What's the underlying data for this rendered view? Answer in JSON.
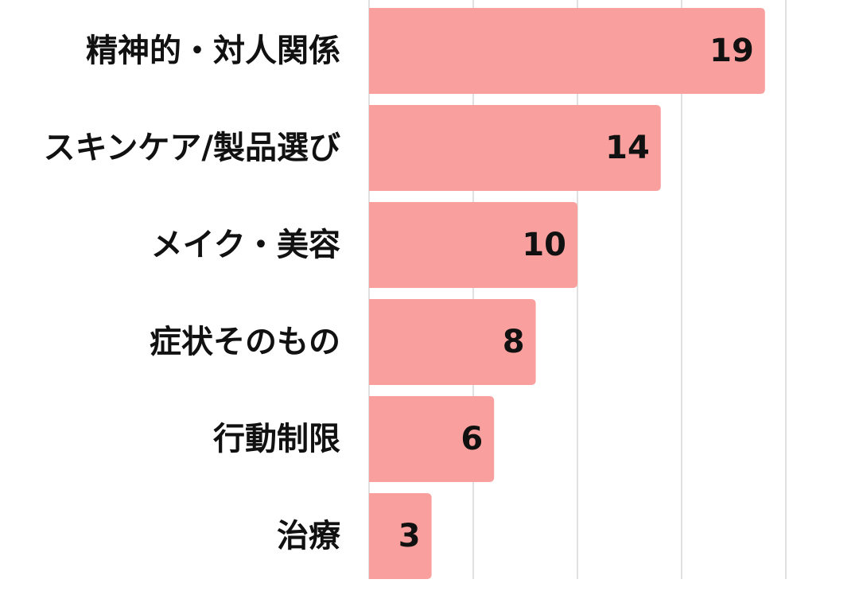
{
  "chart_data": {
    "type": "bar",
    "orientation": "horizontal",
    "categories": [
      "精神的・対人関係",
      "スキンケア/製品選び",
      "メイク・美容",
      "症状そのもの",
      "行動制限",
      "治療"
    ],
    "values": [
      19,
      14,
      10,
      8,
      6,
      3
    ],
    "xlim": [
      0,
      20
    ],
    "grid": true,
    "bar_color": "#F9A09E",
    "grid_color": "#D6D6D6"
  }
}
